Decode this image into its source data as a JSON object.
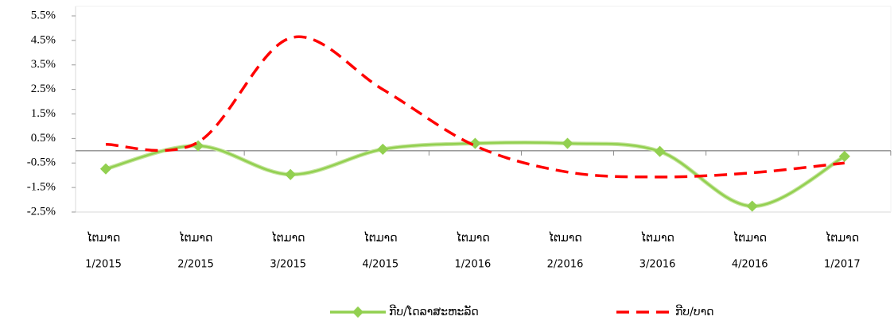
{
  "chart_data": {
    "type": "line",
    "categories": [
      [
        "ໄຕມາດ",
        "1/2015"
      ],
      [
        "ໄຕມາດ",
        "2/2015"
      ],
      [
        "ໄຕມາດ",
        "3/2015"
      ],
      [
        "ໄຕມາດ",
        "4/2015"
      ],
      [
        "ໄຕມາດ",
        "1/2016"
      ],
      [
        "ໄຕມາດ",
        "2/2016"
      ],
      [
        "ໄຕມາດ",
        "3/2016"
      ],
      [
        "ໄຕມາດ",
        "4/2016"
      ],
      [
        "ໄຕມາດ",
        "1/2017"
      ]
    ],
    "series": [
      {
        "name": "ກີບ/ໂດລາສະຫະລັດ",
        "color": "#92d050",
        "values": [
          -0.74,
          0.2,
          -0.97,
          0.06,
          0.3,
          0.3,
          -0.03,
          -2.26,
          -0.23
        ]
      },
      {
        "name": "ກີບ/ບາດ",
        "color": "#ff0000",
        "values": [
          0.26,
          0.35,
          4.6,
          2.5,
          0.2,
          -0.87,
          -1.07,
          -0.9,
          -0.5
        ]
      }
    ],
    "ylim": [
      -2.5,
      5.5
    ],
    "yticks": [
      {
        "value": -2.5,
        "label": "-2.5%"
      },
      {
        "value": -1.5,
        "label": "-1.5%"
      },
      {
        "value": -0.5,
        "label": "-0.5%"
      },
      {
        "value": 0.5,
        "label": "0.5%"
      },
      {
        "value": 1.5,
        "label": "1.5%"
      },
      {
        "value": 2.5,
        "label": "2.5%"
      },
      {
        "value": 3.5,
        "label": "3.5%"
      },
      {
        "value": 4.5,
        "label": "4.5%"
      },
      {
        "value": 5.5,
        "label": "5.5%"
      }
    ],
    "legend": "bottom"
  }
}
